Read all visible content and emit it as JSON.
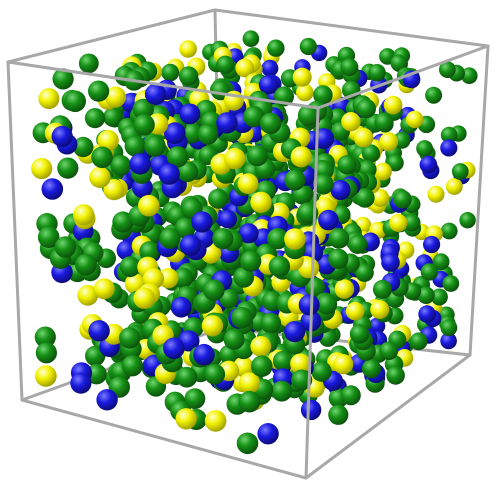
{
  "scene": {
    "subject": "molecular-simulation-box",
    "background_color": "#ffffff",
    "box_edge_color": "#a8a8a8",
    "particle_species": [
      {
        "key": "green",
        "color": "#159015",
        "highlight": "#6fd66f",
        "shade": "#0b4d0b",
        "share": 0.64
      },
      {
        "key": "blue",
        "color": "#1a1ae0",
        "highlight": "#7a7aff",
        "shade": "#0a0a70",
        "share": 0.18
      },
      {
        "key": "yellow",
        "color": "#f2f200",
        "highlight": "#ffffd0",
        "shade": "#9a9a00",
        "share": 0.18
      }
    ],
    "particle_count_estimate": 1100
  }
}
